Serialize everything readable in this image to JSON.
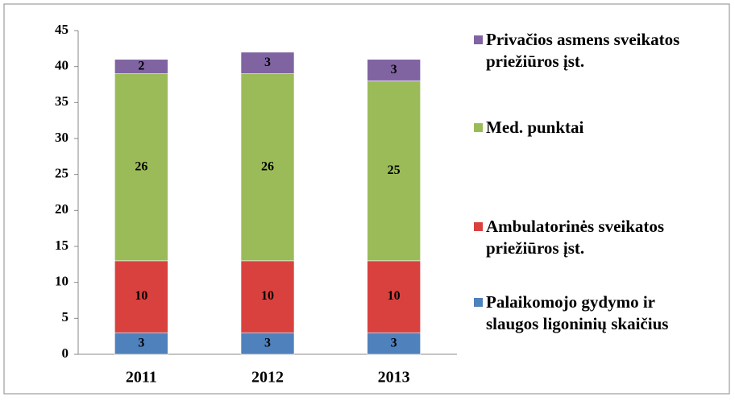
{
  "chart_data": {
    "type": "bar",
    "stacked": true,
    "categories": [
      "2011",
      "2012",
      "2013"
    ],
    "series": [
      {
        "name": "Palaikomojo gydymo ir slaugos ligoninių skaičius",
        "color": "#4f81bd",
        "values": [
          3,
          3,
          3
        ]
      },
      {
        "name": "Ambulatorinės sveikatos priežiūros įst.",
        "color": "#d9413e",
        "values": [
          10,
          10,
          10
        ]
      },
      {
        "name": "Med. punktai",
        "color": "#9bbb59",
        "values": [
          26,
          26,
          25
        ]
      },
      {
        "name": "Privačios asmens sveikatos priežiūros įst.",
        "color": "#8064a2",
        "values": [
          2,
          3,
          3
        ]
      }
    ],
    "ylim": [
      0,
      45
    ],
    "yticks": [
      0,
      5,
      10,
      15,
      20,
      25,
      30,
      35,
      40,
      45
    ],
    "grid": false,
    "legend": "right"
  }
}
